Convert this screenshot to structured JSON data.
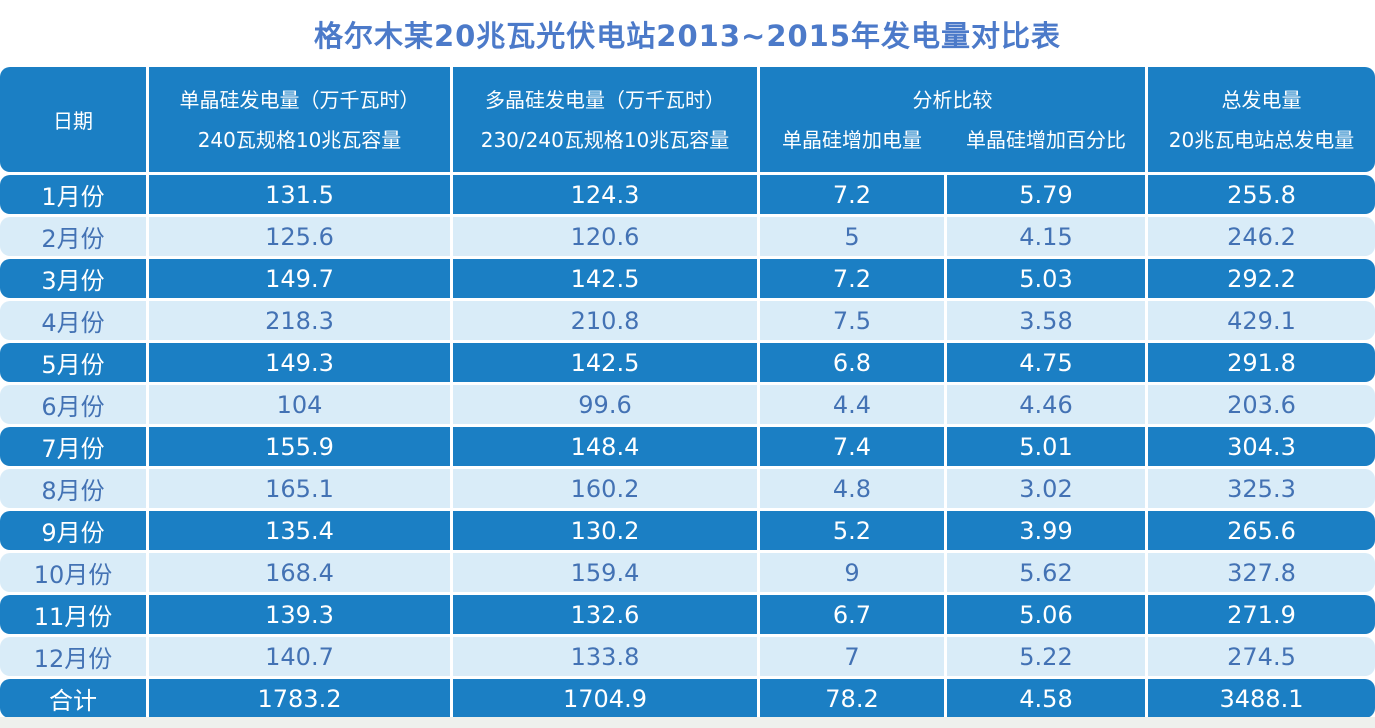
{
  "title": "格尔木某20兆瓦光伏电站2013~2015年发电量对比表",
  "colors": {
    "dark_row_bg": "#1b7fc4",
    "light_row_bg": "#d9ecf8",
    "light_row_text": "#4372b4",
    "header_text": "#ffffff",
    "title_text": "#4c7ac9",
    "divider": "#ffffff"
  },
  "chart_data": {
    "type": "table",
    "title": "格尔木某20兆瓦光伏电站2013~2015年发电量对比表",
    "columns": {
      "date": "日期",
      "mono_line1": "单晶硅发电量（万千瓦时）",
      "mono_line2": "240瓦规格10兆瓦容量",
      "poly_line1": "多晶硅发电量（万千瓦时）",
      "poly_line2": "230/240瓦规格10兆瓦容量",
      "analysis_group": "分析比较",
      "analysis_sub1": "单晶硅增加电量",
      "analysis_sub2": "单晶硅增加百分比",
      "total_line1": "总发电量",
      "total_line2": "20兆瓦电站总发电量"
    },
    "rows": [
      {
        "month": "1月份",
        "mono": "131.5",
        "poly": "124.3",
        "increase": "7.2",
        "percent": "5.79",
        "total": "255.8"
      },
      {
        "month": "2月份",
        "mono": "125.6",
        "poly": "120.6",
        "increase": "5",
        "percent": "4.15",
        "total": "246.2"
      },
      {
        "month": "3月份",
        "mono": "149.7",
        "poly": "142.5",
        "increase": "7.2",
        "percent": "5.03",
        "total": "292.2"
      },
      {
        "month": "4月份",
        "mono": "218.3",
        "poly": "210.8",
        "increase": "7.5",
        "percent": "3.58",
        "total": "429.1"
      },
      {
        "month": "5月份",
        "mono": "149.3",
        "poly": "142.5",
        "increase": "6.8",
        "percent": "4.75",
        "total": "291.8"
      },
      {
        "month": "6月份",
        "mono": "104",
        "poly": "99.6",
        "increase": "4.4",
        "percent": "4.46",
        "total": "203.6"
      },
      {
        "month": "7月份",
        "mono": "155.9",
        "poly": "148.4",
        "increase": "7.4",
        "percent": "5.01",
        "total": "304.3"
      },
      {
        "month": "8月份",
        "mono": "165.1",
        "poly": "160.2",
        "increase": "4.8",
        "percent": "3.02",
        "total": "325.3"
      },
      {
        "month": "9月份",
        "mono": "135.4",
        "poly": "130.2",
        "increase": "5.2",
        "percent": "3.99",
        "total": "265.6"
      },
      {
        "month": "10月份",
        "mono": "168.4",
        "poly": "159.4",
        "increase": "9",
        "percent": "5.62",
        "total": "327.8"
      },
      {
        "month": "11月份",
        "mono": "139.3",
        "poly": "132.6",
        "increase": "6.7",
        "percent": "5.06",
        "total": "271.9"
      },
      {
        "month": "12月份",
        "mono": "140.7",
        "poly": "133.8",
        "increase": "7",
        "percent": "5.22",
        "total": "274.5"
      },
      {
        "month": "合计",
        "mono": "1783.2",
        "poly": "1704.9",
        "increase": "78.2",
        "percent": "4.58",
        "total": "3488.1"
      }
    ]
  }
}
